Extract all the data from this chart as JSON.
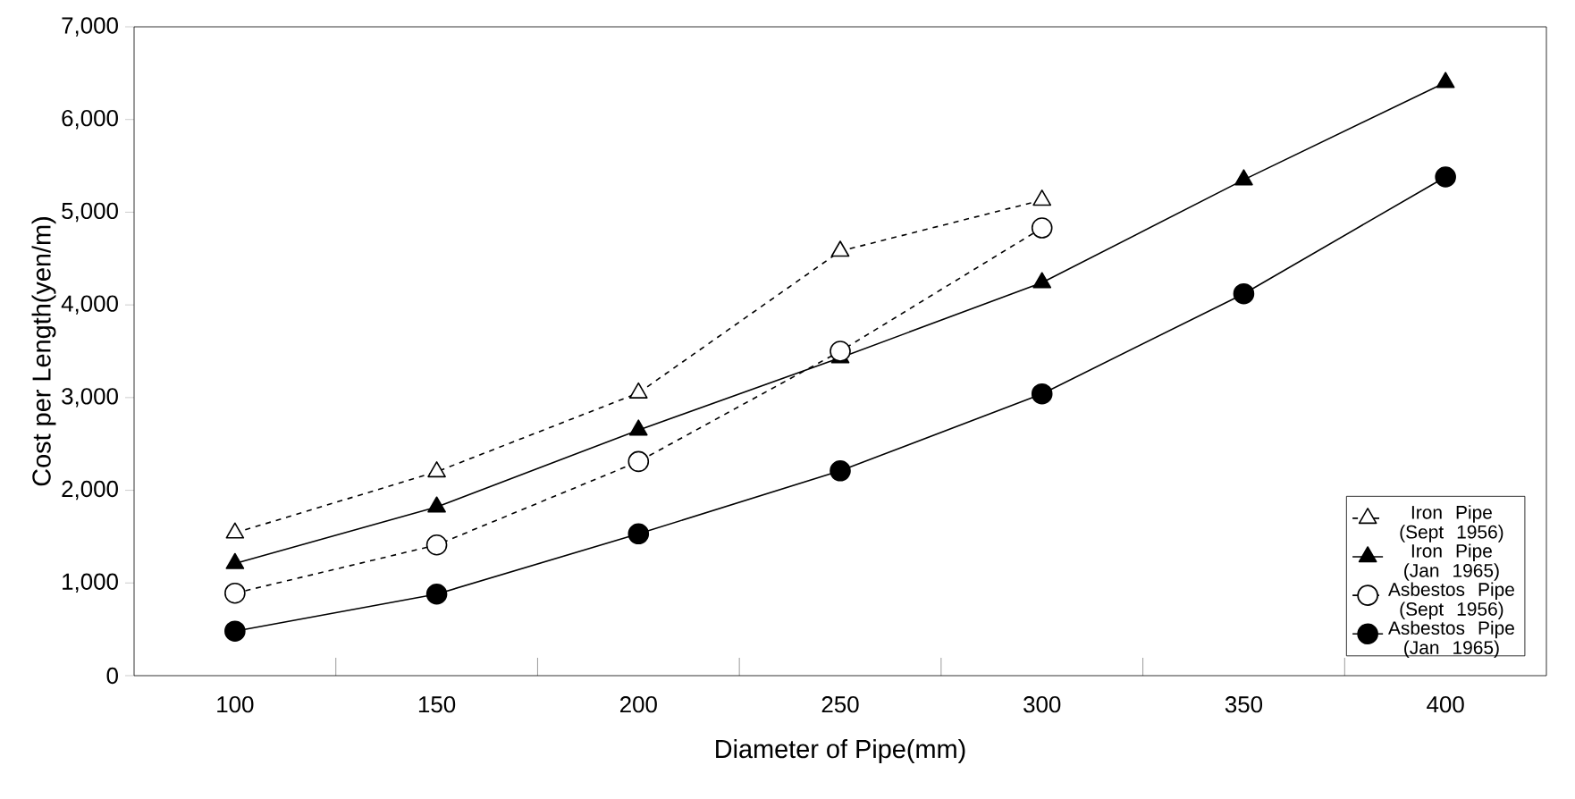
{
  "chart_data": {
    "type": "line",
    "xlabel": "Diameter of Pipe(mm)",
    "ylabel": "Cost per Length(yen/m)",
    "categories": [
      "100",
      "150",
      "200",
      "250",
      "300",
      "350",
      "400"
    ],
    "ylim": [
      0,
      7000
    ],
    "yticks": [
      {
        "value": 0,
        "label": "0"
      },
      {
        "value": 1000,
        "label": "1,000"
      },
      {
        "value": 2000,
        "label": "2,000"
      },
      {
        "value": 3000,
        "label": "3,000"
      },
      {
        "value": 4000,
        "label": "4,000"
      },
      {
        "value": 5000,
        "label": "5,000"
      },
      {
        "value": 6000,
        "label": "6,000"
      },
      {
        "value": 7000,
        "label": "7,000"
      }
    ],
    "grid": false,
    "legend": "bottom right",
    "series": [
      {
        "name": "Iron Pipe (Sept 1956)",
        "color": "#000000",
        "marker": "triangle",
        "line_style": "dashed",
        "values": [
          1540,
          2200,
          3050,
          4580,
          5130,
          null,
          null
        ]
      },
      {
        "name": "Iron Pipe (Jan 1965)",
        "color": "#000000",
        "marker": "triangle",
        "line_style": "solid",
        "values": [
          1210,
          1820,
          2650,
          3430,
          4240,
          5350,
          6400
        ]
      },
      {
        "name": "Asbestos Pipe (Sept 1956)",
        "color": "#000000",
        "marker": "circle",
        "line_style": "dashed",
        "values": [
          890,
          1410,
          2310,
          3500,
          4830,
          null,
          null
        ]
      },
      {
        "name": "Asbestos Pipe (Jan 1965)",
        "color": "#000000",
        "marker": "circle",
        "line_style": "solid",
        "values": [
          480,
          880,
          1530,
          2210,
          3040,
          4120,
          5380
        ]
      }
    ]
  }
}
